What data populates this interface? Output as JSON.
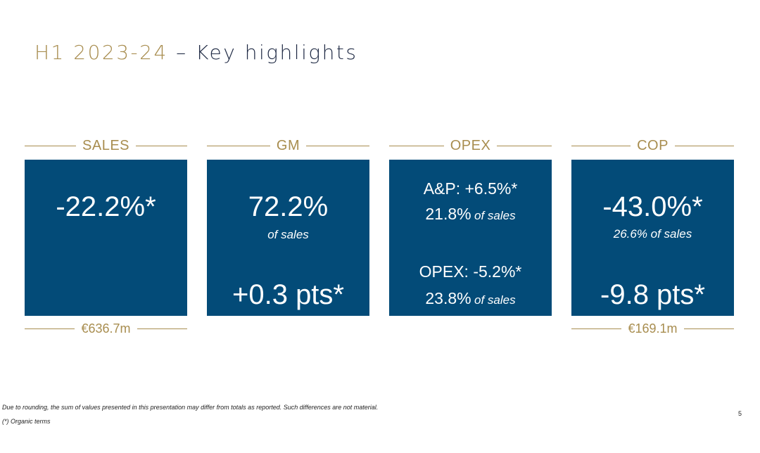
{
  "title": {
    "accent": "H1 2023-24",
    "rest": " – Key highlights"
  },
  "columns": [
    {
      "header": "SALES",
      "main_value": "-22.2%*",
      "footer": "€636.7m"
    },
    {
      "header": "GM",
      "main_value": "72.2%",
      "main_note": "of sales",
      "secondary_value": "+0.3 pts*"
    },
    {
      "header": "OPEX",
      "ap_value": "A&P: +6.5%*",
      "ap_pct": "21.8%",
      "ap_note": "of sales",
      "opex_value": "OPEX: -5.2%*",
      "opex_pct": "23.8%",
      "opex_note": "of sales"
    },
    {
      "header": "COP",
      "main_value": "-43.0%*",
      "main_note": "26.6% of sales",
      "secondary_value": "-9.8 pts*",
      "footer": "€169.1m"
    }
  ],
  "footnotes": {
    "rounding": "Due to rounding, the sum of values presented in this presentation may differ from totals as reported. Such differences are not material.",
    "organic": "(*) Organic terms"
  },
  "page_number": "5",
  "colors": {
    "accent_gold": "#a88d4f",
    "box_blue": "#034b78",
    "title_dark": "#1f2a44"
  }
}
